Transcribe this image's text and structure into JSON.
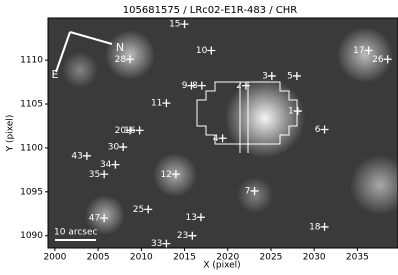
{
  "chart_data": {
    "type": "scatter",
    "title": "105681575 / LRc02-E1R-483 / CHR",
    "xlabel": "X (pixel)",
    "ylabel": "Y (pixel)",
    "xlim": [
      1999.2,
      2039.7
    ],
    "ylim": [
      1088.6,
      1114.8
    ],
    "xticks": [
      2000,
      2005,
      2010,
      2015,
      2020,
      2025,
      2030,
      2035
    ],
    "yticks": [
      1090,
      1095,
      1100,
      1105,
      1110
    ],
    "series": [
      {
        "color": "#ffffff",
        "labels": [
          "15",
          "10",
          "17",
          "28",
          "26",
          "3",
          "5",
          "2",
          "9",
          "8",
          "11",
          "1",
          "6",
          "20",
          "16",
          "4",
          "30",
          "43",
          "34",
          "35",
          "12",
          "7",
          "25",
          "47",
          "13",
          "18",
          "23",
          "33"
        ],
        "x": [
          2015.0,
          2018.1,
          2036.3,
          2008.7,
          2038.5,
          2025.1,
          2028.0,
          2022.1,
          2015.8,
          2017.0,
          2012.9,
          2028.1,
          2031.2,
          2008.7,
          2009.8,
          2019.4,
          2007.9,
          2003.7,
          2007.0,
          2005.7,
          2014.0,
          2023.1,
          2010.8,
          2005.7,
          2016.9,
          2031.2,
          2015.9,
          2012.9
        ],
        "values": [
          1114.1,
          1111.1,
          1111.1,
          1110.1,
          1110.1,
          1108.2,
          1108.2,
          1107.1,
          1107.1,
          1107.1,
          1105.1,
          1104.2,
          1102.1,
          1102.0,
          1102.0,
          1101.1,
          1100.1,
          1099.1,
          1098.1,
          1097.0,
          1097.0,
          1095.1,
          1093.0,
          1092.0,
          1092.1,
          1091.0,
          1090.0,
          1089.1
        ]
      }
    ],
    "compass": [
      "N",
      "E"
    ],
    "scalebar": "10 arcsec"
  }
}
